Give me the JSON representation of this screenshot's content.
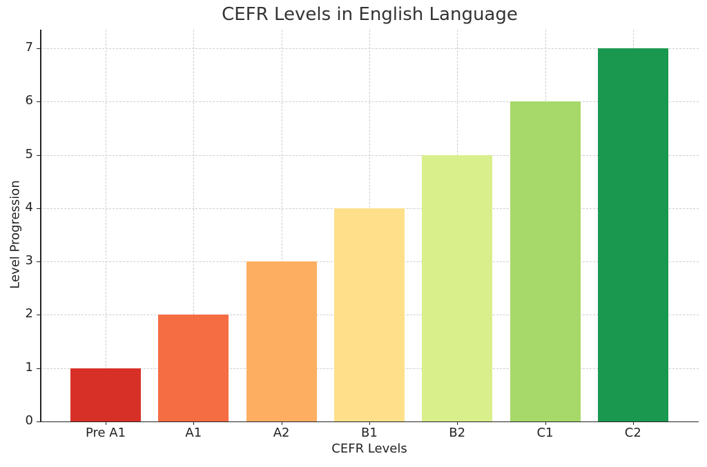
{
  "chart_data": {
    "type": "bar",
    "title": "CEFR Levels in English Language",
    "xlabel": "CEFR Levels",
    "ylabel": "Level Progression",
    "categories": [
      "Pre A1",
      "A1",
      "A2",
      "B1",
      "B2",
      "C1",
      "C2"
    ],
    "values": [
      1,
      2,
      3,
      4,
      5,
      6,
      7
    ],
    "colors": [
      "#d73027",
      "#f46d43",
      "#fdae61",
      "#fee08b",
      "#d9ef8b",
      "#a6d96a",
      "#1a9850"
    ],
    "ylim": [
      0,
      7.35
    ],
    "yticks": [
      0,
      1,
      2,
      3,
      4,
      5,
      6,
      7
    ],
    "grid": true,
    "grid_style": "dashed",
    "legend": null
  }
}
